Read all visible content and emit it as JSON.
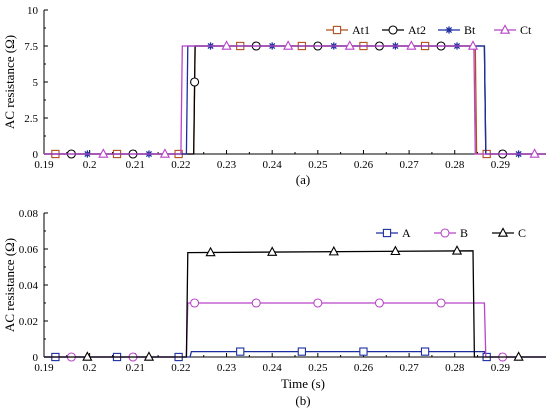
{
  "chart_data": [
    {
      "type": "line",
      "panel_label": "(a)",
      "xlabel": "",
      "ylabel": "AC resistance (Ω)",
      "xlim": [
        0.19,
        0.3
      ],
      "ylim": [
        0,
        10
      ],
      "xticks": [
        "0.19",
        "0.2",
        "0.21",
        "0.22",
        "0.23",
        "0.24",
        "0.25",
        "0.26",
        "0.27",
        "0.28",
        "0.29"
      ],
      "yticks": [
        "0",
        "2.5",
        "5",
        "7.5",
        "10"
      ],
      "legend_position": "top-right",
      "series": [
        {
          "name": "At1",
          "color": "#b0501e",
          "marker": "square",
          "x": [
            0.19,
            0.2228,
            0.2231,
            0.2845,
            0.2848,
            0.3
          ],
          "y": [
            0,
            0,
            7.5,
            7.5,
            0,
            0
          ]
        },
        {
          "name": "At2",
          "color": "#000000",
          "marker": "circle",
          "x": [
            0.19,
            0.2228,
            0.2231,
            0.2865,
            0.2868,
            0.3
          ],
          "y": [
            0,
            0,
            7.5,
            7.5,
            0,
            0
          ]
        },
        {
          "name": "Bt",
          "color": "#1c2fa0",
          "marker": "star",
          "x": [
            0.19,
            0.2212,
            0.2215,
            0.2865,
            0.2868,
            0.3
          ],
          "y": [
            0,
            0,
            7.5,
            7.5,
            0,
            0
          ]
        },
        {
          "name": "Ct",
          "color": "#b845c8",
          "marker": "triangle",
          "x": [
            0.19,
            0.22,
            0.2203,
            0.2842,
            0.2845,
            0.3
          ],
          "y": [
            0,
            0,
            7.5,
            7.5,
            0,
            0
          ]
        }
      ]
    },
    {
      "type": "line",
      "panel_label": "(b)",
      "xlabel": "Time (s)",
      "ylabel": "AC resistance (Ω)",
      "xlim": [
        0.19,
        0.3
      ],
      "ylim": [
        0,
        0.08
      ],
      "xticks": [
        "0.19",
        "0.2",
        "0.21",
        "0.22",
        "0.23",
        "0.24",
        "0.25",
        "0.26",
        "0.27",
        "0.28",
        "0.29"
      ],
      "yticks": [
        "0",
        "0.02",
        "0.04",
        "0.06",
        "0.08"
      ],
      "legend_position": "top-right",
      "series": [
        {
          "name": "A",
          "color": "#1c2fa0",
          "marker": "square",
          "x": [
            0.19,
            0.222,
            0.2223,
            0.2865,
            0.2868,
            0.3
          ],
          "y": [
            0,
            0,
            0.003,
            0.003,
            0,
            0
          ]
        },
        {
          "name": "B",
          "color": "#b845c8",
          "marker": "circle",
          "x": [
            0.19,
            0.2212,
            0.2215,
            0.2865,
            0.2868,
            0.3
          ],
          "y": [
            0,
            0,
            0.03,
            0.03,
            0,
            0
          ]
        },
        {
          "name": "C",
          "color": "#000000",
          "marker": "triangle",
          "x": [
            0.19,
            0.2212,
            0.2215,
            0.284,
            0.2843,
            0.3
          ],
          "y": [
            0,
            0,
            0.058,
            0.059,
            0,
            0
          ]
        }
      ]
    }
  ]
}
